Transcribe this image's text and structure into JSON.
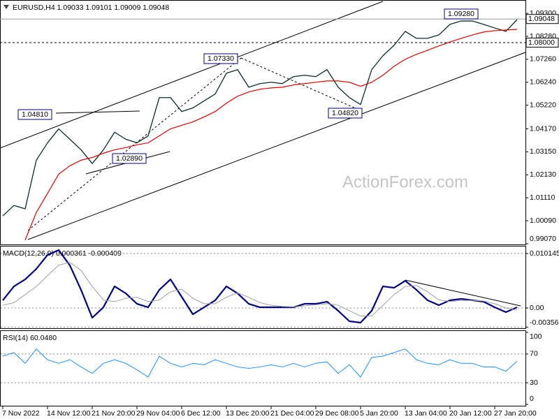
{
  "chart_data": [
    {
      "type": "line",
      "title": "EURUSD,H4  1.09033 1.09101 1.09009 1.09048",
      "watermark": "ActionForex.com",
      "ylim": [
        0.9904,
        1.0983
      ],
      "yticks": [
        {
          "value": 1.093,
          "label": "1.09300"
        },
        {
          "value": 1.0828,
          "label": "1.08280"
        },
        {
          "value": 1.0726,
          "label": "1.07260"
        },
        {
          "value": 1.0624,
          "label": "1.06240"
        },
        {
          "value": 1.0522,
          "label": "1.05220"
        },
        {
          "value": 1.0417,
          "label": "1.04170"
        },
        {
          "value": 1.0315,
          "label": "1.03150"
        },
        {
          "value": 1.0213,
          "label": "1.02130"
        },
        {
          "value": 1.0111,
          "label": "1.01110"
        },
        {
          "value": 1.0009,
          "label": "1.00090"
        },
        {
          "value": 0.9907,
          "label": "0.99070"
        }
      ],
      "grid": false,
      "levels": [
        {
          "value": 1.09048,
          "label": "1.09048",
          "color": "#9a9a9a",
          "dashed": false
        },
        {
          "value": 1.08,
          "label": "1.08000",
          "color": "#000000",
          "dashed": true
        }
      ],
      "annotations": [
        "1.04810",
        "1.07330",
        "1.09280",
        "1.02890",
        "1.04820"
      ],
      "series": [
        {
          "color": "#0b2b2b",
          "width": 1.3,
          "values": [
            1.0031,
            1.0077,
            1.0062,
            1.0278,
            1.0355,
            1.0417,
            1.0371,
            1.0324,
            1.0263,
            1.0324,
            1.0402,
            1.0371,
            1.0355,
            1.0386,
            1.0556,
            1.0556,
            1.0494,
            1.051,
            1.0541,
            1.0572,
            1.0664,
            1.068,
            1.0602,
            1.0618,
            1.0624,
            1.0618,
            1.0649,
            1.0655,
            1.0649,
            1.068,
            1.0602,
            1.0556,
            1.0525,
            1.068,
            1.0742,
            1.0788,
            1.085,
            1.0819,
            1.0819,
            1.0834,
            1.0881,
            1.0896,
            1.0896,
            1.0881,
            1.0865,
            1.085,
            1.0902
          ]
        },
        {
          "color": "#e00000",
          "width": 1.2,
          "values": [
            null,
            null,
            0.9923,
            1.0046,
            1.013,
            1.0216,
            1.0253,
            1.0278,
            1.029,
            1.0309,
            1.0324,
            1.0334,
            1.0346,
            1.0355,
            1.0386,
            1.0417,
            1.0433,
            1.0448,
            1.047,
            1.0494,
            1.0531,
            1.0562,
            1.0581,
            1.0593,
            1.0599,
            1.0602,
            1.0612,
            1.0618,
            1.0624,
            1.063,
            1.063,
            1.0624,
            1.0606,
            1.0624,
            1.0655,
            1.0695,
            1.0726,
            1.0748,
            1.0766,
            1.0785,
            1.0803,
            1.0819,
            1.0834,
            1.0847,
            1.0853,
            1.0856,
            1.0859
          ]
        }
      ]
    },
    {
      "type": "line",
      "title": "MACD(12,26,9) 0.000361 -0.000409",
      "ylim": [
        -0.00377,
        0.01145
      ],
      "yticks": [
        0.010145,
        {
          "value": 0,
          "label": "0.00"
        },
        -0.003563
      ],
      "grid": true,
      "series": [
        {
          "color": "#000080",
          "width": 2.2,
          "values": [
            0.00143,
            0.00403,
            0.00533,
            0.00728,
            0.00988,
            0.01079,
            0.00793,
            0.00338,
            -0.00182,
            0.00013,
            0.00403,
            0.00273,
            0.00078,
            0.00013,
            0.00338,
            0.00533,
            0.00208,
            -0.00117,
            0.00013,
            0.00143,
            0.00403,
            0.00273,
            0.00078,
            0.00013,
            0.00013,
            0.00013,
            0.00013,
            0.00078,
            0.00078,
            0.00117,
            -0.00052,
            -0.00247,
            -0.00273,
            -0.00052,
            0.00403,
            0.00377,
            0.00507,
            0.00338,
            0.00143,
            0.00052,
            0.00143,
            0.00169,
            0.00143,
            0.00117,
            0.00013,
            -0.00078,
            0.00013
          ]
        },
        {
          "color": "#a0a0a0",
          "width": 1,
          "values": [
            0.0005,
            0.001,
            0.0025,
            0.004,
            0.006,
            0.008,
            0.0085,
            0.007,
            0.004,
            0.0015,
            0.0012,
            0.0018,
            0.002,
            0.0012,
            0.0015,
            0.003,
            0.0035,
            0.0018,
            0.0008,
            0.0008,
            0.002,
            0.0028,
            0.002,
            0.001,
            0.0005,
            0.0003,
            0.0002,
            0.0004,
            0.0006,
            0.0008,
            0.0005,
            -0.0005,
            -0.0015,
            -0.0015,
            0.0005,
            0.0025,
            0.004,
            0.0042,
            0.003,
            0.0015,
            0.0012,
            0.0014,
            0.0014,
            0.0013,
            0.0008,
            0,
            -0.0004
          ]
        }
      ]
    },
    {
      "type": "line",
      "title": "RSI(14) 60.0480",
      "ylim": [
        0,
        100
      ],
      "yticks": [
        100,
        70,
        30,
        0
      ],
      "grid": true,
      "xticks": [
        {
          "value": 0,
          "label": "7 Nov 2022"
        },
        {
          "value": 4,
          "label": "14 Nov 12:00"
        },
        {
          "value": 8,
          "label": "21 Nov 20:00"
        },
        {
          "value": 12,
          "label": "29 Nov 04:00"
        },
        {
          "value": 16,
          "label": "6 Dec 12:00"
        },
        {
          "value": 20,
          "label": "13 Dec 20:00"
        },
        {
          "value": 24,
          "label": "21 Dec 04:00"
        },
        {
          "value": 28,
          "label": "29 Dec 08:00"
        },
        {
          "value": 32,
          "label": "5 Jan 20:00"
        },
        {
          "value": 36,
          "label": "13 Jan 04:00"
        },
        {
          "value": 40,
          "label": "20 Jan 12:00"
        },
        {
          "value": 44,
          "label": "27 Jan 20:00"
        }
      ],
      "series": [
        {
          "color": "#1e90ff",
          "width": 1,
          "values": [
            67,
            72,
            57,
            77,
            62,
            57,
            62,
            52,
            43,
            57,
            62,
            57,
            48,
            38,
            67,
            57,
            52,
            57,
            55,
            62,
            57,
            52,
            50,
            52,
            55,
            52,
            57,
            52,
            57,
            59,
            43,
            55,
            38,
            65,
            67,
            72,
            77,
            62,
            57,
            55,
            62,
            57,
            57,
            52,
            52,
            46,
            60
          ]
        }
      ]
    }
  ]
}
